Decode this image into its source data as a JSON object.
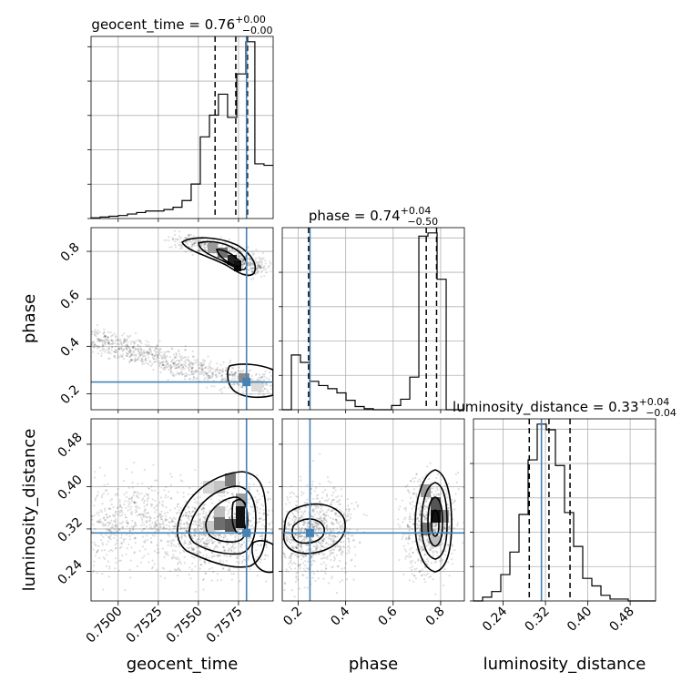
{
  "chart_data": {
    "type": "corner",
    "parameters": [
      "geocent_time",
      "phase",
      "luminosity_distance"
    ],
    "axis_labels": {
      "geocent_time": "geocent_time",
      "phase": "phase",
      "luminosity_distance": "luminosity_distance"
    },
    "ranges": {
      "geocent_time": [
        0.74831,
        0.75966
      ],
      "phase": [
        0.1328,
        0.9
      ],
      "luminosity_distance": [
        0.184,
        0.528
      ]
    },
    "ticks": {
      "geocent_time": [
        "0.7500",
        "0.7525",
        "0.7550",
        "0.7575"
      ],
      "phase": [
        "0.2",
        "0.4",
        "0.6",
        "0.8"
      ],
      "luminosity_distance": [
        "0.24",
        "0.32",
        "0.40",
        "0.48"
      ]
    },
    "titles": {
      "geocent_time": {
        "prefix": "geocent_time = ",
        "median": "0.76",
        "plus": "+0.00",
        "minus": "−0.00"
      },
      "phase": {
        "prefix": "phase = ",
        "median": "0.74",
        "plus": "+0.04",
        "minus": "−0.50"
      },
      "luminosity_distance": {
        "prefix": "luminosity_distance = ",
        "median": "0.33",
        "plus": "+0.04",
        "minus": "−0.04"
      }
    },
    "truths": {
      "geocent_time": 0.758,
      "phase": 0.2495,
      "luminosity_distance": 0.3124
    },
    "quantiles": {
      "geocent_time": [
        0.75604,
        0.75733,
        0.75806
      ],
      "phase": [
        0.2437,
        0.7395,
        0.7829
      ],
      "luminosity_distance": [
        0.2894,
        0.3266,
        0.3664
      ]
    },
    "histograms": {
      "geocent_time": {
        "edges": [
          0.74831,
          0.74888,
          0.74944,
          0.75001,
          0.75058,
          0.75115,
          0.75171,
          0.75228,
          0.75285,
          0.75342,
          0.75398,
          0.75455,
          0.75512,
          0.75569,
          0.75625,
          0.75682,
          0.75739,
          0.75796,
          0.75852,
          0.75909,
          0.75966
        ],
        "counts": [
          1,
          2,
          3,
          4,
          6,
          8,
          10,
          10,
          12,
          15,
          24,
          46,
          109,
          138,
          166,
          135,
          193,
          236,
          73,
          71
        ]
      },
      "phase": {
        "edges": [
          0.1328,
          0.1712,
          0.2095,
          0.2479,
          0.2863,
          0.3247,
          0.363,
          0.4014,
          0.4398,
          0.4781,
          0.5165,
          0.5549,
          0.5932,
          0.6316,
          0.67,
          0.7083,
          0.7467,
          0.7851,
          0.8234,
          0.8618,
          0.9002
        ],
        "counts": [
          0,
          52,
          45,
          27,
          23,
          20,
          16,
          9,
          3,
          1,
          0,
          0,
          4,
          10,
          31,
          165,
          168,
          124,
          0,
          0
        ]
      },
      "luminosity_distance": {
        "edges": [
          0.184,
          0.2012,
          0.2184,
          0.2356,
          0.2528,
          0.27,
          0.2872,
          0.3044,
          0.3216,
          0.3388,
          0.356,
          0.3732,
          0.3904,
          0.4076,
          0.4248,
          0.442,
          0.4592,
          0.4764,
          0.4936,
          0.5108,
          0.528
        ],
        "counts": [
          0,
          2,
          5,
          14,
          26,
          46,
          75,
          94,
          91,
          72,
          47,
          29,
          12,
          8,
          3,
          1,
          1,
          0,
          0,
          0
        ]
      }
    },
    "scatter_clusters": [
      {
        "panel": "phase_vs_geocent_time",
        "points": [
          [
            0.7551,
            0.83
          ],
          [
            0.7558,
            0.815
          ],
          [
            0.7566,
            0.8
          ],
          [
            0.7572,
            0.78
          ],
          [
            0.7578,
            0.765
          ],
          [
            0.7583,
            0.75
          ],
          [
            0.7587,
            0.73
          ],
          [
            0.7541,
            0.845
          ]
        ]
      },
      {
        "panel": "phase_vs_geocent_time",
        "points": [
          [
            0.7485,
            0.43
          ],
          [
            0.7498,
            0.4
          ],
          [
            0.751,
            0.385
          ],
          [
            0.7522,
            0.36
          ],
          [
            0.7535,
            0.33
          ],
          [
            0.7548,
            0.305
          ],
          [
            0.7562,
            0.285
          ],
          [
            0.7575,
            0.262
          ],
          [
            0.759,
            0.24
          ]
        ]
      },
      {
        "panel": "luminosity_distance_vs_geocent_time",
        "points": [
          [
            0.7568,
            0.33
          ],
          [
            0.7576,
            0.32
          ],
          [
            0.756,
            0.31
          ],
          [
            0.755,
            0.29
          ],
          [
            0.753,
            0.33
          ],
          [
            0.7505,
            0.35
          ],
          [
            0.749,
            0.3
          ]
        ]
      },
      {
        "panel": "luminosity_distance_vs_phase",
        "points": [
          [
            0.75,
            0.325
          ],
          [
            0.76,
            0.34
          ],
          [
            0.74,
            0.3
          ],
          [
            0.23,
            0.31
          ],
          [
            0.3,
            0.33
          ],
          [
            0.36,
            0.3
          ],
          [
            0.18,
            0.29
          ]
        ]
      }
    ]
  }
}
